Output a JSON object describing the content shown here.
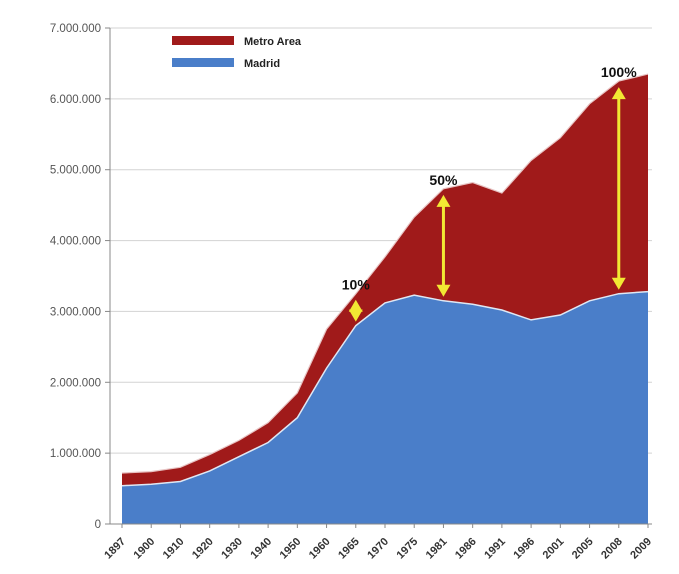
{
  "chart_data": {
    "type": "area",
    "stacked": true,
    "title": "",
    "xlabel": "",
    "ylabel": "",
    "ylim": [
      0,
      7000000
    ],
    "yticks": [
      "0",
      "1.000.000",
      "2.000.000",
      "3.000.000",
      "4.000.000",
      "5.000.000",
      "6.000.000",
      "7.000.000"
    ],
    "categories": [
      "1897",
      "1900",
      "1910",
      "1920",
      "1930",
      "1940",
      "1950",
      "1960",
      "1965",
      "1970",
      "1975",
      "1981",
      "1986",
      "1991",
      "1996",
      "2001",
      "2005",
      "2008",
      "2009"
    ],
    "series": [
      {
        "name": "Madrid",
        "color": "#4A7EC9",
        "values": [
          540000,
          560000,
          600000,
          750000,
          950000,
          1150000,
          1500000,
          2200000,
          2800000,
          3120000,
          3230000,
          3150000,
          3100000,
          3020000,
          2880000,
          2950000,
          3150000,
          3250000,
          3280000
        ]
      },
      {
        "name": "Metro Area",
        "color": "#A01A1A",
        "values": [
          180000,
          180000,
          200000,
          230000,
          230000,
          280000,
          350000,
          550000,
          450000,
          650000,
          1100000,
          1580000,
          1720000,
          1650000,
          2250000,
          2500000,
          2780000,
          3000000,
          3070000
        ]
      }
    ],
    "grid": true,
    "legend_position": "top-left",
    "annotations": [
      {
        "label": "10%",
        "category": "1965"
      },
      {
        "label": "50%",
        "category": "1981"
      },
      {
        "label": "100%",
        "category": "2008"
      }
    ]
  }
}
